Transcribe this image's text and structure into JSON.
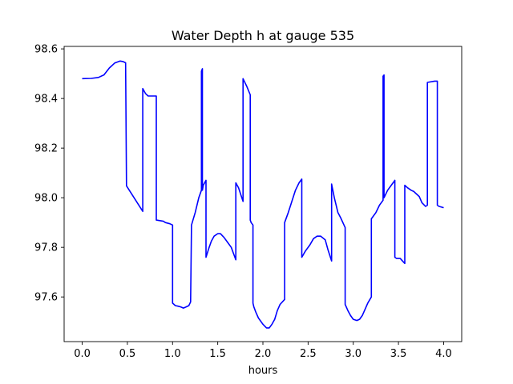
{
  "chart_data": {
    "type": "line",
    "title": "Water Depth h at gauge 535",
    "xlabel": "hours",
    "ylabel": "",
    "xlim": [
      -0.2,
      4.2
    ],
    "ylim": [
      97.42,
      98.61
    ],
    "xticks": [
      0.0,
      0.5,
      1.0,
      1.5,
      2.0,
      2.5,
      3.0,
      3.5,
      4.0
    ],
    "xtick_labels": [
      "0.0",
      "0.5",
      "1.0",
      "1.5",
      "2.0",
      "2.5",
      "3.0",
      "3.5",
      "4.0"
    ],
    "yticks": [
      97.6,
      97.8,
      98.0,
      98.2,
      98.4,
      98.6
    ],
    "ytick_labels": [
      "97.6",
      "97.8",
      "98.0",
      "98.2",
      "98.4",
      "98.6"
    ],
    "grid": false,
    "series": [
      {
        "color": "#0000ff",
        "x": [
          0.0,
          0.1,
          0.18,
          0.24,
          0.3,
          0.36,
          0.42,
          0.45,
          0.48,
          0.49,
          0.67,
          0.67,
          0.7,
          0.73,
          0.8,
          0.82,
          0.82,
          0.9,
          0.92,
          0.97,
          1.0,
          1.0,
          1.03,
          1.06,
          1.09,
          1.12,
          1.15,
          1.18,
          1.2,
          1.21,
          1.25,
          1.29,
          1.32,
          1.32,
          1.33,
          1.33,
          1.34,
          1.37,
          1.37,
          1.4,
          1.43,
          1.46,
          1.5,
          1.53,
          1.57,
          1.61,
          1.65,
          1.68,
          1.7,
          1.7,
          1.73,
          1.78,
          1.78,
          1.82,
          1.86,
          1.86,
          1.87,
          1.89,
          1.89,
          1.9,
          1.92,
          1.95,
          2.0,
          2.04,
          2.07,
          2.1,
          2.13,
          2.16,
          2.19,
          2.24,
          2.24,
          2.28,
          2.32,
          2.36,
          2.4,
          2.43,
          2.43,
          2.47,
          2.52,
          2.56,
          2.6,
          2.64,
          2.69,
          2.72,
          2.76,
          2.76,
          2.79,
          2.83,
          2.86,
          2.91,
          2.91,
          2.94,
          2.97,
          3.0,
          3.04,
          3.07,
          3.1,
          3.13,
          3.16,
          3.2,
          3.2,
          3.25,
          3.29,
          3.33,
          3.33,
          3.34,
          3.34,
          3.38,
          3.42,
          3.45,
          3.46,
          3.46,
          3.48,
          3.52,
          3.57,
          3.57,
          3.6,
          3.64,
          3.67,
          3.7,
          3.73,
          3.76,
          3.8,
          3.82,
          3.82,
          3.9,
          3.93,
          3.93,
          3.95,
          4.0
        ],
        "y": [
          98.48,
          98.481,
          98.485,
          98.495,
          98.523,
          98.543,
          98.551,
          98.549,
          98.544,
          98.048,
          97.945,
          98.44,
          98.42,
          98.41,
          98.41,
          98.41,
          97.91,
          97.905,
          97.9,
          97.895,
          97.89,
          97.575,
          97.565,
          97.563,
          97.56,
          97.555,
          97.56,
          97.565,
          97.58,
          97.89,
          97.94,
          98.0,
          98.03,
          98.51,
          98.52,
          98.03,
          98.05,
          98.07,
          97.76,
          97.795,
          97.825,
          97.845,
          97.855,
          97.855,
          97.84,
          97.82,
          97.8,
          97.77,
          97.75,
          98.06,
          98.04,
          97.985,
          98.48,
          98.45,
          98.415,
          97.91,
          97.9,
          97.89,
          97.575,
          97.56,
          97.54,
          97.515,
          97.49,
          97.475,
          97.475,
          97.49,
          97.51,
          97.545,
          97.57,
          97.59,
          97.9,
          97.94,
          97.985,
          98.03,
          98.06,
          98.075,
          97.76,
          97.785,
          97.81,
          97.835,
          97.845,
          97.845,
          97.83,
          97.79,
          97.745,
          98.055,
          98.0,
          97.94,
          97.92,
          97.88,
          97.57,
          97.545,
          97.525,
          97.51,
          97.505,
          97.51,
          97.525,
          97.55,
          97.575,
          97.6,
          97.915,
          97.94,
          97.97,
          97.99,
          98.49,
          98.495,
          98.0,
          98.03,
          98.05,
          98.065,
          98.07,
          97.76,
          97.755,
          97.755,
          97.735,
          98.05,
          98.04,
          98.03,
          98.025,
          98.015,
          98.005,
          97.98,
          97.965,
          97.97,
          98.465,
          98.47,
          98.47,
          97.97,
          97.965,
          97.96
        ]
      }
    ]
  }
}
